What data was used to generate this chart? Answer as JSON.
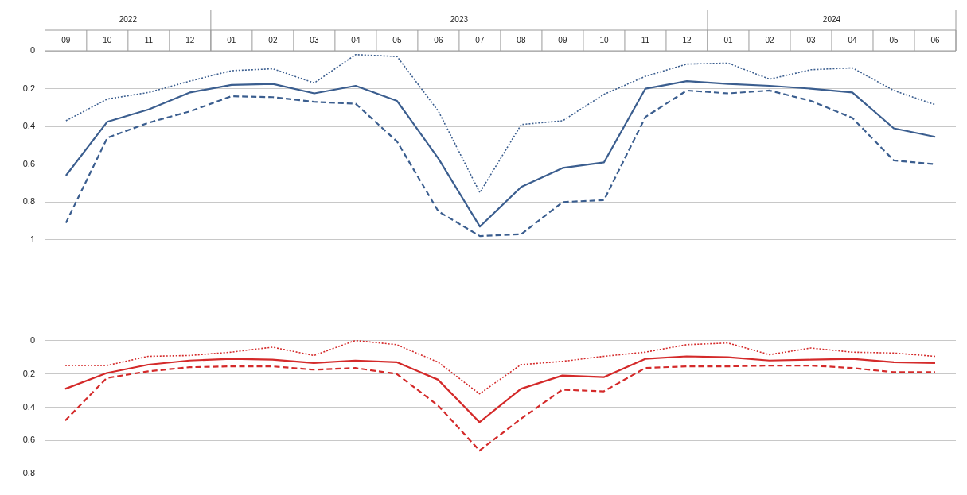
{
  "chart_data": [
    {
      "type": "line",
      "x": [
        "2022-09",
        "2022-10",
        "2022-11",
        "2022-12",
        "2023-01",
        "2023-02",
        "2023-03",
        "2023-04",
        "2023-05",
        "2023-06",
        "2023-07",
        "2023-08",
        "2023-09",
        "2023-10",
        "2023-11",
        "2023-12",
        "2024-01",
        "2024-02",
        "2024-03",
        "2024-04",
        "2024-05",
        "2024-06"
      ],
      "series": [
        {
          "color": "#3b5e8f",
          "line_style": "solid",
          "values": [
            0.66,
            0.375,
            0.31,
            0.22,
            0.18,
            0.175,
            0.225,
            0.185,
            0.265,
            0.57,
            0.93,
            0.72,
            0.62,
            0.59,
            0.2,
            0.16,
            0.175,
            0.185,
            0.2,
            0.22,
            0.41,
            0.455
          ]
        },
        {
          "color": "#3b5e8f",
          "line_style": "dashed",
          "values": [
            0.91,
            0.46,
            0.38,
            0.32,
            0.24,
            0.245,
            0.27,
            0.28,
            0.48,
            0.85,
            0.98,
            0.97,
            0.8,
            0.79,
            0.35,
            0.21,
            0.225,
            0.21,
            0.265,
            0.355,
            0.58,
            0.6
          ]
        },
        {
          "color": "#3b5e8f",
          "line_style": "dotted",
          "values": [
            0.37,
            0.255,
            0.22,
            0.16,
            0.105,
            0.095,
            0.17,
            0.02,
            0.03,
            0.32,
            0.75,
            0.39,
            0.37,
            0.23,
            0.135,
            0.07,
            0.065,
            0.15,
            0.1,
            0.09,
            0.21,
            0.285
          ]
        }
      ],
      "xlim": [
        "2022-08-16",
        "2024-06-16"
      ],
      "ylim": [
        1.2,
        0
      ],
      "yticks": [
        0,
        0.2,
        0.4,
        0.6,
        0.8,
        1
      ],
      "grid": "y",
      "marker": "none",
      "legend": false,
      "xticks": [
        {
          "value": "2022-09",
          "label": "09"
        },
        {
          "value": "2022-10",
          "label": "10"
        },
        {
          "value": "2022-11",
          "label": "11"
        },
        {
          "value": "2022-12",
          "label": "12"
        },
        {
          "value": "2023-01",
          "label": "01"
        },
        {
          "value": "2023-02",
          "label": "02"
        },
        {
          "value": "2023-03",
          "label": "03"
        },
        {
          "value": "2023-04",
          "label": "04"
        },
        {
          "value": "2023-05",
          "label": "05"
        },
        {
          "value": "2023-06",
          "label": "06"
        },
        {
          "value": "2023-07",
          "label": "07"
        },
        {
          "value": "2023-08",
          "label": "08"
        },
        {
          "value": "2023-09",
          "label": "09"
        },
        {
          "value": "2023-10",
          "label": "10"
        },
        {
          "value": "2023-11",
          "label": "11"
        },
        {
          "value": "2023-12",
          "label": "12"
        },
        {
          "value": "2024-01",
          "label": "01"
        },
        {
          "value": "2024-02",
          "label": "02"
        },
        {
          "value": "2024-03",
          "label": "03"
        },
        {
          "value": "2024-04",
          "label": "04"
        },
        {
          "value": "2024-05",
          "label": "05"
        },
        {
          "value": "2024-06",
          "label": "06"
        }
      ],
      "annotations": [
        "2022",
        "2023",
        "2024"
      ]
    },
    {
      "type": "line",
      "categories": [
        null,
        null,
        null,
        null,
        null,
        null,
        null,
        null,
        null,
        null,
        null,
        null,
        null,
        null,
        null,
        null,
        null,
        null,
        null,
        null,
        null,
        null
      ],
      "series": [
        {
          "color": "#d42a2a",
          "line_style": "solid",
          "values": [
            0.29,
            0.195,
            0.145,
            0.12,
            0.11,
            0.115,
            0.135,
            0.12,
            0.13,
            0.235,
            0.49,
            0.29,
            0.21,
            0.22,
            0.11,
            0.095,
            0.1,
            0.12,
            0.115,
            0.11,
            0.13,
            0.135
          ]
        },
        {
          "color": "#d42a2a",
          "line_style": "dashed",
          "values": [
            0.48,
            0.225,
            0.185,
            0.16,
            0.155,
            0.155,
            0.175,
            0.165,
            0.2,
            0.39,
            0.66,
            0.47,
            0.295,
            0.305,
            0.165,
            0.155,
            0.155,
            0.15,
            0.15,
            0.165,
            0.19,
            0.19
          ]
        },
        {
          "color": "#d42a2a",
          "line_style": "dotted",
          "values": [
            0.15,
            0.15,
            0.095,
            0.09,
            0.07,
            0.04,
            0.09,
            0,
            0.025,
            0.13,
            0.32,
            0.145,
            0.125,
            0.095,
            0.07,
            0.025,
            0.015,
            0.085,
            0.045,
            0.07,
            0.075,
            0.095
          ]
        }
      ],
      "ylim": [
        0.8,
        -0.2
      ],
      "yticks": [
        0,
        0.2,
        0.4,
        0.6,
        0.8
      ],
      "grid": "y",
      "marker": "none",
      "legend": false,
      "tick_labels": "y"
    }
  ]
}
